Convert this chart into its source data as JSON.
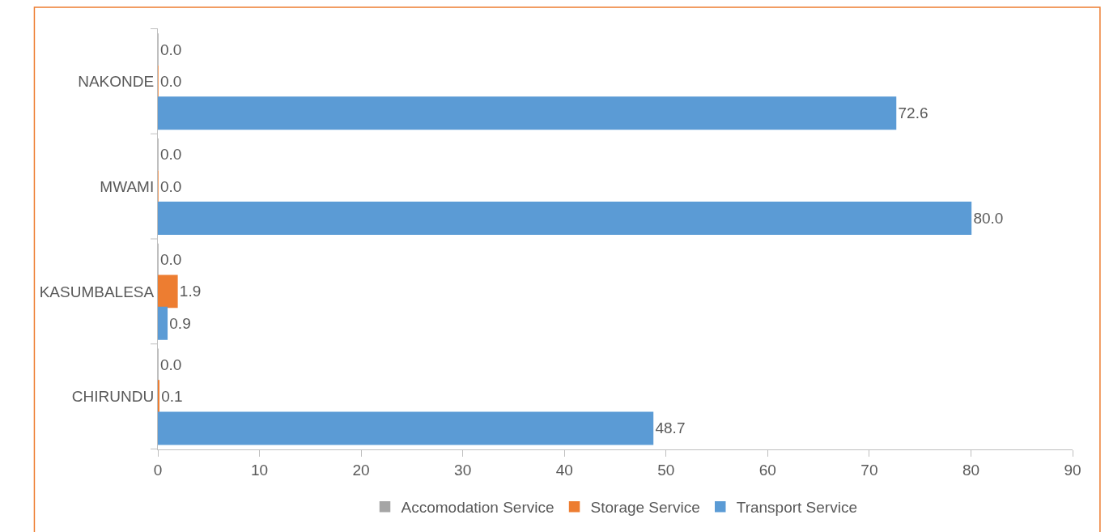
{
  "chart_data": {
    "type": "bar",
    "orientation": "horizontal",
    "categories": [
      "NAKONDE",
      "MWAMI",
      "KASUMBALESA",
      "CHIRUNDU"
    ],
    "series": [
      {
        "name": "Accomodation Service",
        "color": "#a5a5a5",
        "values": [
          0.0,
          0.0,
          0.0,
          0.0
        ],
        "value_labels": [
          "0.0",
          "0.0",
          "0.0",
          "0.0"
        ]
      },
      {
        "name": "Storage Service",
        "color": "#ed7d31",
        "values": [
          0.0,
          0.0,
          1.9,
          0.1
        ],
        "value_labels": [
          "0.0",
          "0.0",
          "1.9",
          "0.1"
        ]
      },
      {
        "name": "Transport Service",
        "color": "#5b9bd5",
        "values": [
          72.6,
          80.0,
          0.9,
          48.7
        ],
        "value_labels": [
          "72.6",
          "80.0",
          "0.9",
          "48.7"
        ]
      }
    ],
    "xlim": [
      0,
      90
    ],
    "xticks": [
      0,
      10,
      20,
      30,
      40,
      50,
      60,
      70,
      80,
      90
    ],
    "legend": "bottom"
  }
}
